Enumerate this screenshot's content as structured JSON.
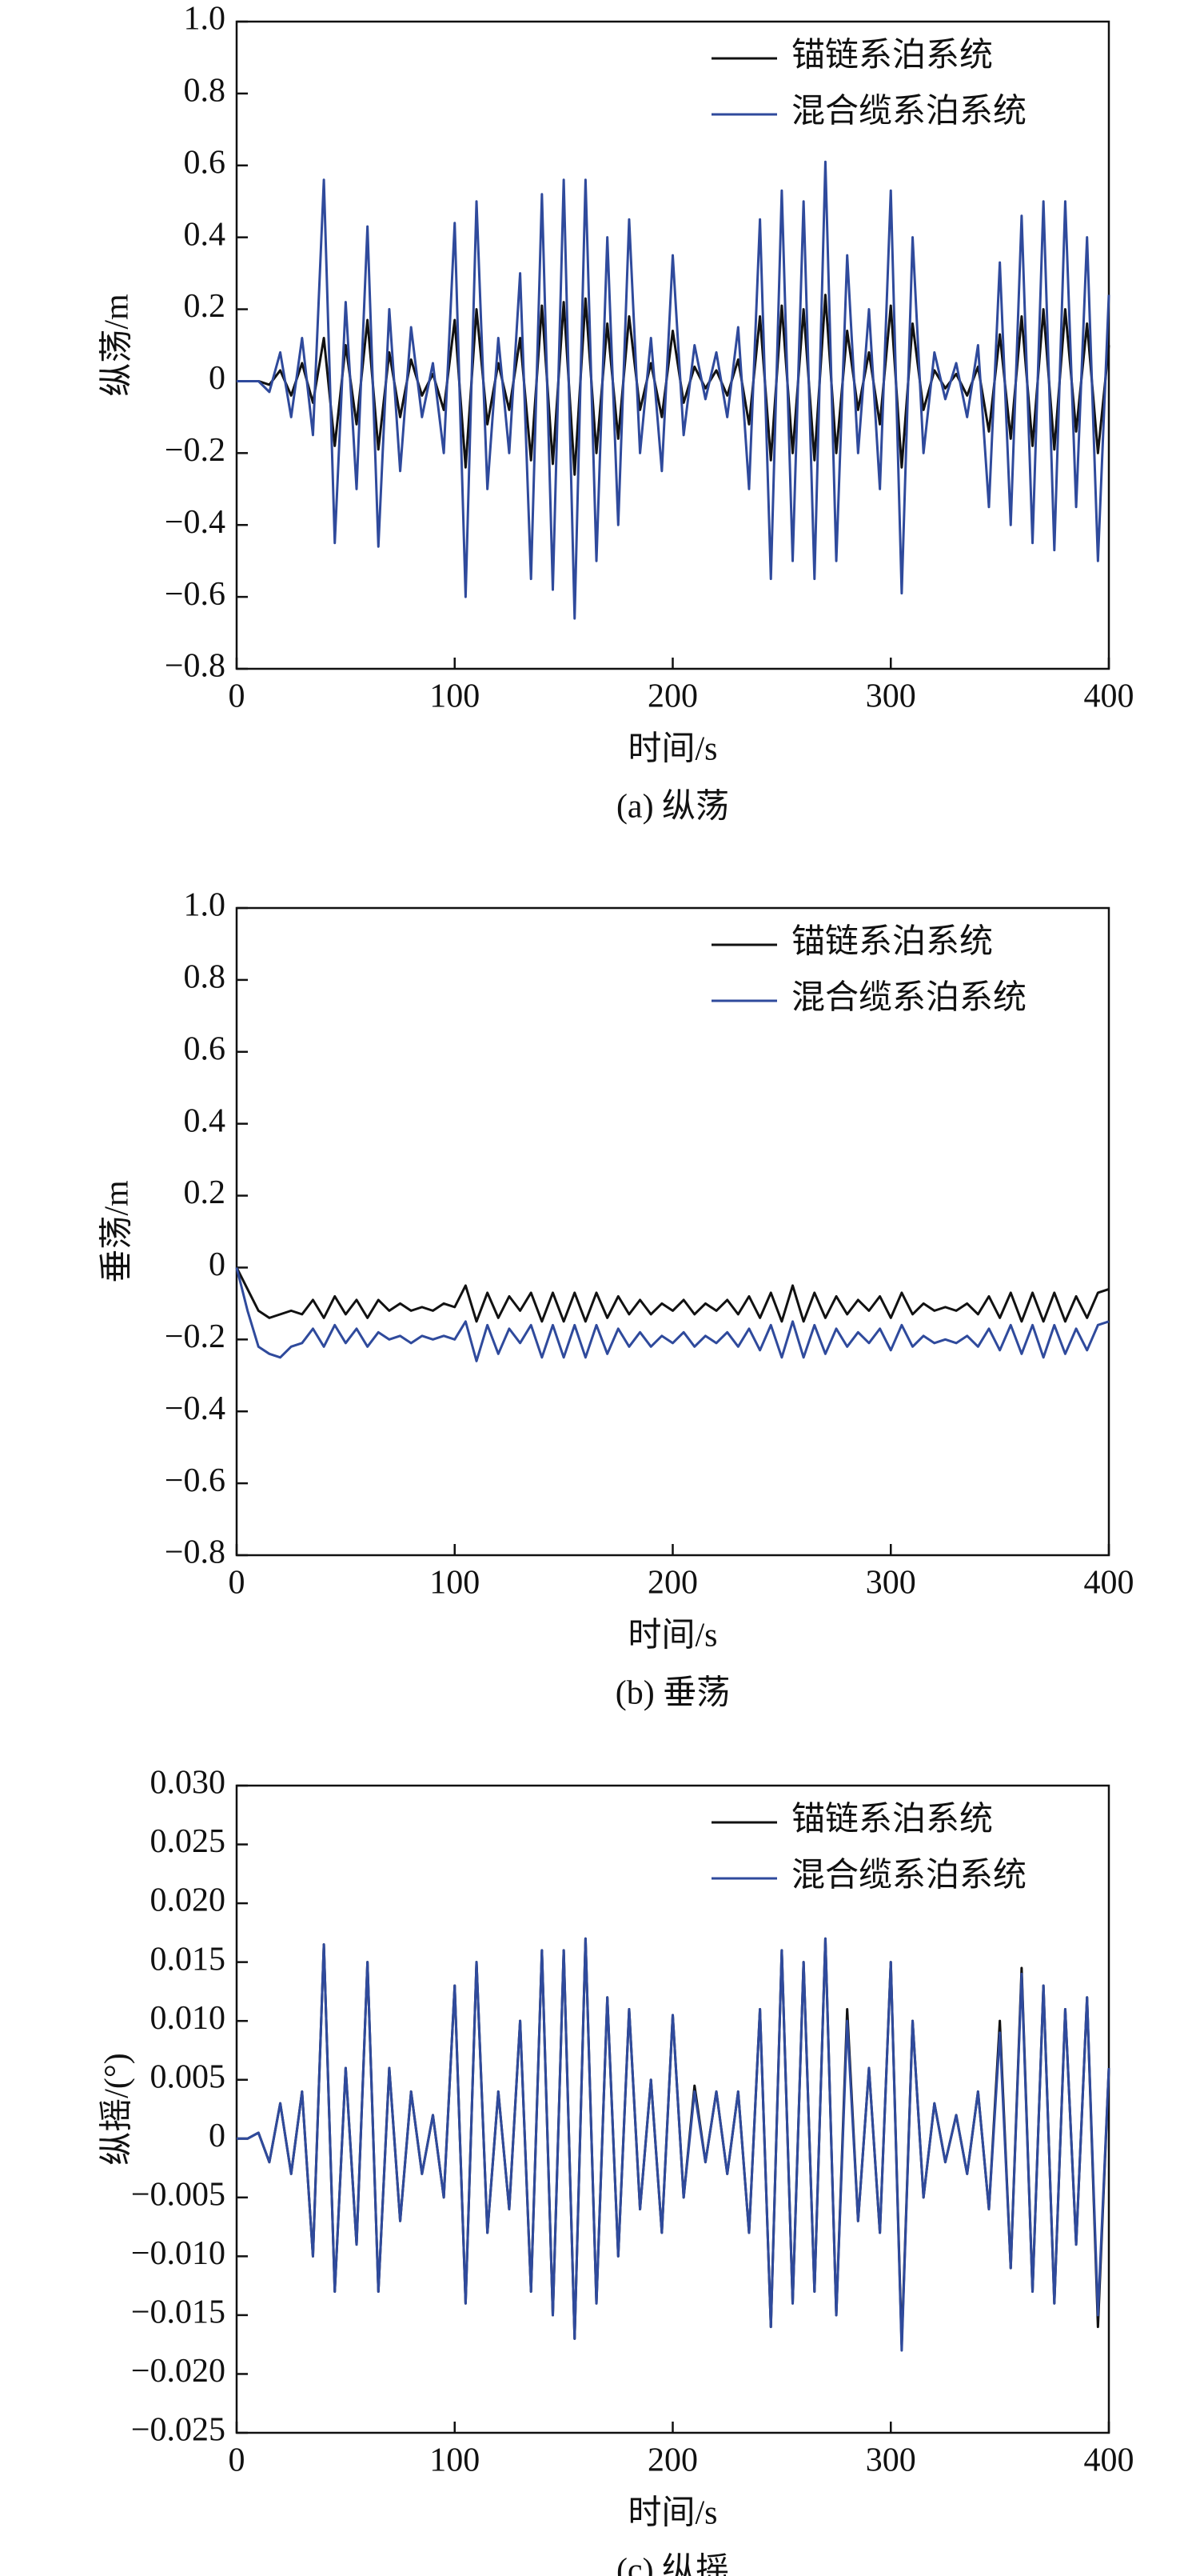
{
  "chart_data": [
    {
      "type": "line",
      "ylabel": "纵荡/m",
      "xlabel": "时间/s",
      "caption": "(a) 纵荡",
      "legend": "upper right",
      "xlim": [
        0,
        400
      ],
      "xticks": [
        0,
        100,
        200,
        300,
        400
      ],
      "ylim": [
        -0.8,
        1.0
      ],
      "yticks": [
        {
          "value": -0.8,
          "label": "−0.8"
        },
        {
          "value": -0.6,
          "label": "−0.6"
        },
        {
          "value": -0.4,
          "label": "−0.4"
        },
        {
          "value": -0.2,
          "label": "−0.2"
        },
        0,
        0.2,
        0.4,
        0.6,
        0.8,
        {
          "value": 1.0,
          "label": "1.0"
        }
      ],
      "x": [
        0,
        5,
        10,
        15,
        20,
        25,
        30,
        35,
        40,
        45,
        50,
        55,
        60,
        65,
        70,
        75,
        80,
        85,
        90,
        95,
        100,
        105,
        110,
        115,
        120,
        125,
        130,
        135,
        140,
        145,
        150,
        155,
        160,
        165,
        170,
        175,
        180,
        185,
        190,
        195,
        200,
        205,
        210,
        215,
        220,
        225,
        230,
        235,
        240,
        245,
        250,
        255,
        260,
        265,
        270,
        275,
        280,
        285,
        290,
        295,
        300,
        305,
        310,
        315,
        320,
        325,
        330,
        335,
        340,
        345,
        350,
        355,
        360,
        365,
        370,
        375,
        380,
        385,
        390,
        395,
        400
      ],
      "series": [
        {
          "name": "锚链系泊系统",
          "color": "#111111",
          "values": [
            0,
            0,
            0,
            -0.01,
            0.03,
            -0.04,
            0.05,
            -0.06,
            0.12,
            -0.18,
            0.1,
            -0.12,
            0.17,
            -0.19,
            0.08,
            -0.1,
            0.06,
            -0.04,
            0.02,
            -0.08,
            0.17,
            -0.24,
            0.2,
            -0.12,
            0.05,
            -0.08,
            0.12,
            -0.22,
            0.21,
            -0.23,
            0.22,
            -0.26,
            0.23,
            -0.2,
            0.16,
            -0.16,
            0.18,
            -0.08,
            0.05,
            -0.1,
            0.14,
            -0.06,
            0.04,
            -0.02,
            0.03,
            -0.04,
            0.06,
            -0.12,
            0.18,
            -0.22,
            0.21,
            -0.2,
            0.2,
            -0.22,
            0.24,
            -0.2,
            0.14,
            -0.08,
            0.08,
            -0.12,
            0.21,
            -0.24,
            0.16,
            -0.08,
            0.03,
            -0.02,
            0.02,
            -0.04,
            0.04,
            -0.14,
            0.13,
            -0.16,
            0.18,
            -0.18,
            0.2,
            -0.19,
            0.2,
            -0.14,
            0.16,
            -0.2,
            0.1
          ]
        },
        {
          "name": "混合缆系泊系统",
          "color": "#2f4a9c",
          "values": [
            0,
            0,
            0,
            -0.03,
            0.08,
            -0.1,
            0.12,
            -0.15,
            0.56,
            -0.45,
            0.22,
            -0.3,
            0.43,
            -0.46,
            0.2,
            -0.25,
            0.15,
            -0.1,
            0.05,
            -0.2,
            0.44,
            -0.6,
            0.5,
            -0.3,
            0.12,
            -0.2,
            0.3,
            -0.55,
            0.52,
            -0.58,
            0.56,
            -0.66,
            0.56,
            -0.5,
            0.4,
            -0.4,
            0.45,
            -0.2,
            0.12,
            -0.25,
            0.35,
            -0.15,
            0.1,
            -0.05,
            0.08,
            -0.1,
            0.15,
            -0.3,
            0.45,
            -0.55,
            0.53,
            -0.5,
            0.5,
            -0.55,
            0.61,
            -0.5,
            0.35,
            -0.2,
            0.2,
            -0.3,
            0.53,
            -0.59,
            0.4,
            -0.2,
            0.08,
            -0.05,
            0.05,
            -0.1,
            0.1,
            -0.35,
            0.33,
            -0.4,
            0.46,
            -0.45,
            0.5,
            -0.47,
            0.5,
            -0.35,
            0.4,
            -0.5,
            0.24
          ]
        }
      ]
    },
    {
      "type": "line",
      "ylabel": "垂荡/m",
      "xlabel": "时间/s",
      "caption": "(b) 垂荡",
      "legend": "upper right",
      "xlim": [
        0,
        400
      ],
      "xticks": [
        0,
        100,
        200,
        300,
        400
      ],
      "ylim": [
        -0.8,
        1.0
      ],
      "yticks": [
        {
          "value": -0.8,
          "label": "−0.8"
        },
        {
          "value": -0.6,
          "label": "−0.6"
        },
        {
          "value": -0.4,
          "label": "−0.4"
        },
        {
          "value": -0.2,
          "label": "−0.2"
        },
        0,
        0.2,
        0.4,
        0.6,
        0.8,
        {
          "value": 1.0,
          "label": "1.0"
        }
      ],
      "x": [
        0,
        5,
        10,
        15,
        20,
        25,
        30,
        35,
        40,
        45,
        50,
        55,
        60,
        65,
        70,
        75,
        80,
        85,
        90,
        95,
        100,
        105,
        110,
        115,
        120,
        125,
        130,
        135,
        140,
        145,
        150,
        155,
        160,
        165,
        170,
        175,
        180,
        185,
        190,
        195,
        200,
        205,
        210,
        215,
        220,
        225,
        230,
        235,
        240,
        245,
        250,
        255,
        260,
        265,
        270,
        275,
        280,
        285,
        290,
        295,
        300,
        305,
        310,
        315,
        320,
        325,
        330,
        335,
        340,
        345,
        350,
        355,
        360,
        365,
        370,
        375,
        380,
        385,
        390,
        395,
        400
      ],
      "series": [
        {
          "name": "锚链系泊系统",
          "color": "#111111",
          "values": [
            0,
            -0.06,
            -0.12,
            -0.14,
            -0.13,
            -0.12,
            -0.13,
            -0.09,
            -0.14,
            -0.08,
            -0.13,
            -0.09,
            -0.14,
            -0.09,
            -0.12,
            -0.1,
            -0.12,
            -0.11,
            -0.12,
            -0.1,
            -0.11,
            -0.05,
            -0.15,
            -0.07,
            -0.14,
            -0.08,
            -0.12,
            -0.07,
            -0.15,
            -0.07,
            -0.15,
            -0.07,
            -0.15,
            -0.07,
            -0.14,
            -0.08,
            -0.13,
            -0.09,
            -0.13,
            -0.1,
            -0.12,
            -0.09,
            -0.13,
            -0.1,
            -0.12,
            -0.09,
            -0.13,
            -0.08,
            -0.14,
            -0.07,
            -0.15,
            -0.05,
            -0.15,
            -0.07,
            -0.14,
            -0.08,
            -0.13,
            -0.09,
            -0.12,
            -0.08,
            -0.14,
            -0.07,
            -0.13,
            -0.1,
            -0.12,
            -0.11,
            -0.12,
            -0.1,
            -0.13,
            -0.08,
            -0.14,
            -0.07,
            -0.15,
            -0.07,
            -0.15,
            -0.07,
            -0.15,
            -0.08,
            -0.14,
            -0.07,
            -0.06
          ]
        },
        {
          "name": "混合缆系泊系统",
          "color": "#2f4a9c",
          "values": [
            0,
            -0.12,
            -0.22,
            -0.24,
            -0.25,
            -0.22,
            -0.21,
            -0.17,
            -0.22,
            -0.16,
            -0.21,
            -0.17,
            -0.22,
            -0.18,
            -0.2,
            -0.19,
            -0.21,
            -0.19,
            -0.2,
            -0.19,
            -0.2,
            -0.15,
            -0.26,
            -0.16,
            -0.24,
            -0.17,
            -0.21,
            -0.16,
            -0.25,
            -0.16,
            -0.25,
            -0.16,
            -0.25,
            -0.16,
            -0.24,
            -0.17,
            -0.22,
            -0.18,
            -0.22,
            -0.19,
            -0.21,
            -0.18,
            -0.22,
            -0.19,
            -0.21,
            -0.18,
            -0.22,
            -0.17,
            -0.23,
            -0.16,
            -0.25,
            -0.15,
            -0.25,
            -0.16,
            -0.24,
            -0.17,
            -0.22,
            -0.18,
            -0.21,
            -0.17,
            -0.23,
            -0.16,
            -0.22,
            -0.19,
            -0.21,
            -0.2,
            -0.21,
            -0.19,
            -0.22,
            -0.17,
            -0.23,
            -0.16,
            -0.24,
            -0.16,
            -0.25,
            -0.16,
            -0.24,
            -0.17,
            -0.23,
            -0.16,
            -0.15
          ]
        }
      ]
    },
    {
      "type": "line",
      "ylabel": "纵摇/(°)",
      "xlabel": "时间/s",
      "caption": "(c) 纵摇",
      "legend": "upper right",
      "xlim": [
        0,
        400
      ],
      "xticks": [
        0,
        100,
        200,
        300,
        400
      ],
      "ylim": [
        -0.025,
        0.03
      ],
      "yticks": [
        {
          "value": -0.025,
          "label": "−0.025"
        },
        {
          "value": -0.02,
          "label": "−0.020"
        },
        {
          "value": -0.015,
          "label": "−0.015"
        },
        {
          "value": -0.01,
          "label": "−0.010"
        },
        {
          "value": -0.005,
          "label": "−0.005"
        },
        0,
        0.005,
        {
          "value": 0.01,
          "label": "0.010"
        },
        0.015,
        {
          "value": 0.02,
          "label": "0.020"
        },
        0.025,
        {
          "value": 0.03,
          "label": "0.030"
        }
      ],
      "x": [
        0,
        5,
        10,
        15,
        20,
        25,
        30,
        35,
        40,
        45,
        50,
        55,
        60,
        65,
        70,
        75,
        80,
        85,
        90,
        95,
        100,
        105,
        110,
        115,
        120,
        125,
        130,
        135,
        140,
        145,
        150,
        155,
        160,
        165,
        170,
        175,
        180,
        185,
        190,
        195,
        200,
        205,
        210,
        215,
        220,
        225,
        230,
        235,
        240,
        245,
        250,
        255,
        260,
        265,
        270,
        275,
        280,
        285,
        290,
        295,
        300,
        305,
        310,
        315,
        320,
        325,
        330,
        335,
        340,
        345,
        350,
        355,
        360,
        365,
        370,
        375,
        380,
        385,
        390,
        395,
        400
      ],
      "series": [
        {
          "name": "锚链系泊系统",
          "color": "#111111",
          "values": [
            0,
            0,
            0.0005,
            -0.002,
            0.003,
            -0.003,
            0.004,
            -0.01,
            0.0165,
            -0.013,
            0.006,
            -0.009,
            0.015,
            -0.013,
            0.006,
            -0.007,
            0.004,
            -0.003,
            0.002,
            -0.005,
            0.013,
            -0.014,
            0.015,
            -0.008,
            0.004,
            -0.006,
            0.01,
            -0.013,
            0.016,
            -0.015,
            0.016,
            -0.017,
            0.017,
            -0.014,
            0.012,
            -0.01,
            0.011,
            -0.006,
            0.005,
            -0.008,
            0.0105,
            -0.005,
            0.0045,
            -0.002,
            0.004,
            -0.003,
            0.004,
            -0.008,
            0.011,
            -0.016,
            0.016,
            -0.014,
            0.015,
            -0.013,
            0.017,
            -0.015,
            0.011,
            -0.007,
            0.006,
            -0.008,
            0.015,
            -0.0175,
            0.01,
            -0.005,
            0.003,
            -0.002,
            0.002,
            -0.003,
            0.004,
            -0.006,
            0.01,
            -0.011,
            0.0145,
            -0.013,
            0.013,
            -0.014,
            0.011,
            -0.009,
            0.012,
            -0.016,
            0.006
          ]
        },
        {
          "name": "混合缆系泊系统",
          "color": "#2f4a9c",
          "values": [
            0,
            0,
            0.0005,
            -0.002,
            0.003,
            -0.003,
            0.004,
            -0.01,
            0.0165,
            -0.013,
            0.006,
            -0.009,
            0.015,
            -0.013,
            0.006,
            -0.007,
            0.004,
            -0.003,
            0.002,
            -0.005,
            0.013,
            -0.014,
            0.015,
            -0.008,
            0.004,
            -0.006,
            0.01,
            -0.013,
            0.016,
            -0.015,
            0.016,
            -0.017,
            0.017,
            -0.014,
            0.012,
            -0.01,
            0.011,
            -0.006,
            0.005,
            -0.008,
            0.0105,
            -0.005,
            0.004,
            -0.002,
            0.004,
            -0.003,
            0.004,
            -0.008,
            0.011,
            -0.016,
            0.016,
            -0.014,
            0.015,
            -0.013,
            0.017,
            -0.015,
            0.01,
            -0.007,
            0.006,
            -0.008,
            0.015,
            -0.018,
            0.01,
            -0.005,
            0.003,
            -0.002,
            0.002,
            -0.003,
            0.004,
            -0.006,
            0.009,
            -0.011,
            0.014,
            -0.013,
            0.013,
            -0.014,
            0.011,
            -0.009,
            0.012,
            -0.015,
            0.006
          ]
        }
      ]
    }
  ]
}
